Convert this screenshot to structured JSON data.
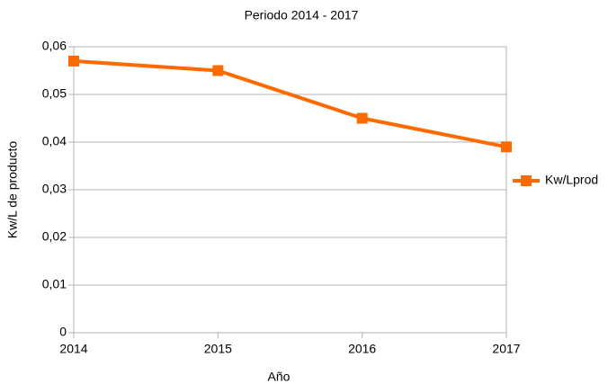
{
  "chart_data": {
    "type": "line",
    "title": "Periodo 2014 - 2017",
    "x_label": "Año",
    "y_label": "Kw/L de producto",
    "categories": [
      "2014",
      "2015",
      "2016",
      "2017"
    ],
    "series": [
      {
        "name": "Kw/Lprod",
        "color": "#ff6a00",
        "values": [
          0.057,
          0.055,
          0.045,
          0.039
        ]
      }
    ],
    "ylim": [
      0,
      0.06
    ],
    "yticks": [
      0,
      {
        "value": 0.01,
        "label": "0,01"
      },
      {
        "value": 0.02,
        "label": "0,02"
      },
      {
        "value": 0.03,
        "label": "0,03"
      },
      {
        "value": 0.04,
        "label": "0,04"
      },
      {
        "value": 0.05,
        "label": "0,05"
      },
      {
        "value": 0.06,
        "label": "0,06"
      }
    ],
    "grid": true,
    "legend": "right"
  }
}
